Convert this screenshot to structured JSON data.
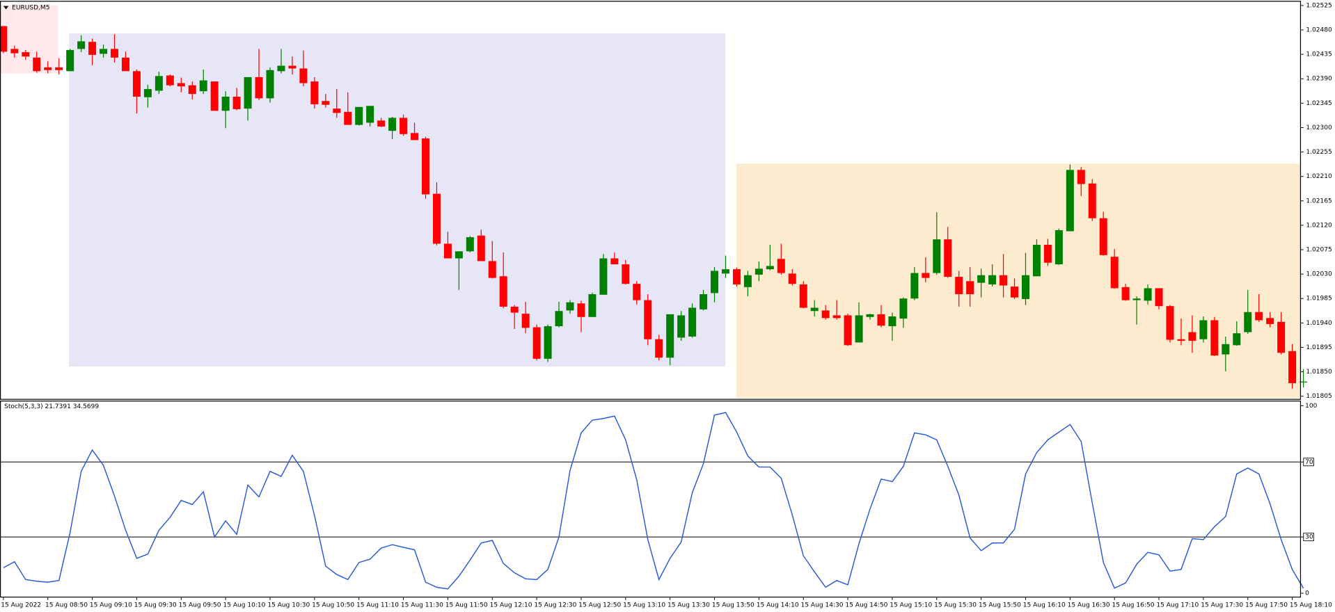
{
  "chart_data": [
    {
      "type": "candlestick",
      "title": "EURUSD,M5",
      "categories": [
        "15 Aug 2022",
        null,
        null,
        null,
        "15 Aug 08:50",
        null,
        null,
        null,
        "15 Aug 09:10",
        null,
        null,
        null,
        "15 Aug 09:30",
        null,
        null,
        null,
        "15 Aug 09:50",
        null,
        null,
        null,
        "15 Aug 10:10",
        null,
        null,
        null,
        "15 Aug 10:30",
        null,
        null,
        null,
        "15 Aug 10:50",
        null,
        null,
        null,
        "15 Aug 11:10",
        null,
        null,
        null,
        "15 Aug 11:30",
        null,
        null,
        null,
        "15 Aug 11:50",
        null,
        null,
        null,
        "15 Aug 12:10",
        null,
        null,
        null,
        "15 Aug 12:30",
        null,
        null,
        null,
        "15 Aug 12:50",
        null,
        null,
        null,
        "15 Aug 13:10",
        null,
        null,
        null,
        "15 Aug 13:30",
        null,
        null,
        null,
        "15 Aug 13:50",
        null,
        null,
        null,
        "15 Aug 14:10",
        null,
        null,
        null,
        "15 Aug 14:30",
        null,
        null,
        null,
        "15 Aug 14:50",
        null,
        null,
        null,
        "15 Aug 15:10",
        null,
        null,
        null,
        "15 Aug 15:30",
        null,
        null,
        null,
        "15 Aug 15:50",
        null,
        null,
        null,
        "15 Aug 16:10",
        null,
        null,
        null,
        "15 Aug 16:30",
        null,
        null,
        null,
        "15 Aug 16:50",
        null,
        null,
        null,
        "15 Aug 17:10",
        null,
        null,
        null,
        "15 Aug 17:30",
        null,
        null,
        null,
        "15 Aug 17:50",
        null,
        null,
        null,
        "15 Aug 18:10",
        null
      ],
      "open": [
        1.02487,
        1.02445,
        1.02439,
        1.02429,
        1.02411,
        1.02411,
        1.02404,
        1.02445,
        1.02458,
        1.02436,
        1.02445,
        1.02429,
        1.02404,
        1.02356,
        1.02368,
        1.02396,
        1.02382,
        1.02378,
        1.02367,
        1.02385,
        1.02331,
        1.02357,
        1.02335,
        1.02393,
        1.02354,
        1.02404,
        1.02414,
        1.02409,
        1.02385,
        1.02349,
        1.02335,
        1.02329,
        1.02305,
        1.02309,
        1.02313,
        1.02294,
        1.02318,
        1.0229,
        1.0228,
        1.02178,
        1.02086,
        1.02059,
        1.02072,
        1.02101,
        1.02054,
        1.02026,
        1.0197,
        1.01957,
        1.01932,
        1.01874,
        1.01934,
        1.01963,
        1.01976,
        1.01951,
        1.01992,
        1.02059,
        1.02048,
        1.02012,
        1.01982,
        1.0191,
        1.01876,
        1.01913,
        1.01915,
        1.01965,
        1.01995,
        1.02031,
        1.02039,
        1.02006,
        1.02029,
        1.02039,
        1.02058,
        1.02031,
        1.02011,
        1.01962,
        1.01963,
        1.01954,
        1.01954,
        1.01904,
        1.01951,
        1.01956,
        1.01934,
        1.01948,
        1.01985,
        1.02032,
        1.02032,
        1.02094,
        1.02025,
        1.02017,
        1.02014,
        1.02011,
        1.02028,
        1.02007,
        1.01984,
        1.02026,
        1.02084,
        1.02048,
        1.02109,
        1.02222,
        1.02197,
        1.02133,
        1.02062,
        1.02006,
        1.01982,
        1.01981,
        1.02004,
        1.01971,
        1.0191,
        1.01923,
        1.0191,
        1.01945,
        1.01882,
        1.01899,
        1.01923,
        1.0196,
        1.01949,
        1.01942,
        1.01888,
        1.01832
      ],
      "high": [
        1.02487,
        1.02451,
        1.02443,
        1.0244,
        1.02422,
        1.02428,
        1.02445,
        1.0247,
        1.02464,
        1.02453,
        1.02472,
        1.0244,
        1.02407,
        1.02379,
        1.02403,
        1.02398,
        1.02392,
        1.02385,
        1.02407,
        1.02385,
        1.02367,
        1.02373,
        1.02393,
        1.02445,
        1.02411,
        1.02445,
        1.02431,
        1.02442,
        1.02393,
        1.02362,
        1.02371,
        1.02365,
        1.02338,
        1.0234,
        1.02318,
        1.0232,
        1.02324,
        1.02309,
        1.02283,
        1.02199,
        1.02108,
        1.02072,
        1.021,
        1.02112,
        1.02091,
        1.0207,
        1.01973,
        1.01979,
        1.01937,
        1.01937,
        1.01979,
        1.01982,
        1.01981,
        1.01996,
        1.02067,
        1.0207,
        1.02056,
        1.02017,
        1.01993,
        1.01918,
        1.01956,
        1.01962,
        1.01976,
        1.02001,
        1.02043,
        1.02064,
        1.02042,
        1.02036,
        1.02053,
        1.02084,
        1.02086,
        1.02039,
        1.02017,
        1.01982,
        1.01973,
        1.01982,
        1.01957,
        1.01978,
        1.01957,
        1.01973,
        1.01959,
        1.01987,
        1.02043,
        1.02061,
        1.02144,
        1.02117,
        1.02036,
        1.02043,
        1.0204,
        1.02048,
        1.02067,
        1.02022,
        1.02069,
        1.02094,
        1.02095,
        1.02114,
        1.02232,
        1.02227,
        1.02205,
        1.02145,
        1.02076,
        1.02012,
        1.01989,
        1.02011,
        1.02004,
        1.01973,
        1.01948,
        1.01954,
        1.01952,
        1.01951,
        1.01915,
        1.01943,
        1.02001,
        1.01993,
        1.0196,
        1.0196,
        1.01901,
        1.01855
      ],
      "low": [
        1.02437,
        1.02429,
        1.02425,
        1.02401,
        1.024,
        1.02398,
        1.02404,
        1.02439,
        1.02415,
        1.02429,
        1.0242,
        1.02404,
        1.02326,
        1.02337,
        1.02362,
        1.02376,
        1.02365,
        1.02352,
        1.02362,
        1.02331,
        1.02299,
        1.02332,
        1.02313,
        1.02351,
        1.02346,
        1.024,
        1.02398,
        1.02376,
        1.02335,
        1.02337,
        1.02318,
        1.02305,
        1.02304,
        1.02302,
        1.02301,
        1.02279,
        1.02285,
        1.02277,
        1.02169,
        1.02083,
        1.02059,
        1.02001,
        1.0207,
        1.02054,
        1.02022,
        1.01967,
        1.01929,
        1.01921,
        1.01871,
        1.01868,
        1.01932,
        1.01957,
        1.01923,
        1.01951,
        1.01992,
        1.02048,
        1.02011,
        1.01974,
        1.01899,
        1.01871,
        1.01862,
        1.01907,
        1.01913,
        1.01963,
        1.01978,
        1.02023,
        1.02007,
        1.01989,
        1.02017,
        1.02037,
        1.02029,
        1.02009,
        1.01967,
        1.01952,
        1.01946,
        1.01946,
        1.01898,
        1.01904,
        1.01946,
        1.01932,
        1.01907,
        1.01931,
        1.01982,
        1.02015,
        1.02029,
        1.02023,
        1.0197,
        1.0197,
        1.01987,
        1.02007,
        1.01987,
        1.01984,
        1.01973,
        1.02026,
        1.02045,
        1.02047,
        1.02109,
        1.02174,
        1.02128,
        1.02064,
        1.02003,
        1.01981,
        1.01937,
        1.01974,
        1.01965,
        1.01904,
        1.01899,
        1.01885,
        1.01904,
        1.01879,
        1.01851,
        1.01898,
        1.0192,
        1.01942,
        1.01932,
        1.01882,
        1.01819,
        1.01821
      ],
      "close": [
        1.0244,
        1.02437,
        1.02431,
        1.02404,
        1.02406,
        1.02406,
        1.02443,
        1.02459,
        1.02434,
        1.02445,
        1.02429,
        1.02404,
        1.02357,
        1.02371,
        1.02395,
        1.02378,
        1.02376,
        1.02362,
        1.02387,
        1.02331,
        1.02357,
        1.02334,
        1.02393,
        1.02354,
        1.02406,
        1.02414,
        1.02409,
        1.02382,
        1.02343,
        1.02342,
        1.02327,
        1.02305,
        1.02338,
        1.0234,
        1.02302,
        1.02318,
        1.02288,
        1.02277,
        1.02177,
        1.02086,
        1.02059,
        1.02072,
        1.02098,
        1.02054,
        1.02023,
        1.0197,
        1.01959,
        1.01931,
        1.01874,
        1.01934,
        1.01962,
        1.01978,
        1.01951,
        1.01993,
        1.02059,
        1.02048,
        1.02012,
        1.01982,
        1.0191,
        1.01876,
        1.01956,
        1.01954,
        1.01968,
        1.01993,
        1.02036,
        1.02039,
        1.02011,
        1.02028,
        1.0204,
        1.02045,
        1.02032,
        1.02012,
        1.01968,
        1.01968,
        1.01949,
        1.01949,
        1.01899,
        1.01954,
        1.01956,
        1.01935,
        1.01952,
        1.01985,
        1.02032,
        1.02023,
        1.02094,
        1.02025,
        1.01993,
        1.01993,
        1.02028,
        1.02028,
        1.02009,
        1.01987,
        1.02028,
        1.02084,
        1.02051,
        1.02111,
        1.02222,
        1.02196,
        1.02133,
        1.02065,
        1.02004,
        1.01982,
        1.01985,
        1.02004,
        1.01971,
        1.01909,
        1.01907,
        1.01907,
        1.01945,
        1.0188,
        1.01901,
        1.01921,
        1.0196,
        1.01945,
        1.01938,
        1.01885,
        1.01829,
        1.01832
      ],
      "up_color": "#008000",
      "down_color": "#ff0000",
      "ylim": [
        1.018,
        1.02532
      ],
      "yticks": [
        1.01805,
        {
          "value": 1.0185,
          "label": "1.01850"
        },
        1.01895,
        {
          "value": 1.0194,
          "label": "1.01940"
        },
        1.01985,
        {
          "value": 1.0203,
          "label": "1.02030"
        },
        1.02075,
        {
          "value": 1.0212,
          "label": "1.02120"
        },
        1.02165,
        {
          "value": 1.0221,
          "label": "1.02210"
        },
        1.02255,
        {
          "value": 1.023,
          "label": "1.02300"
        },
        1.02345,
        {
          "value": 1.0239,
          "label": "1.02390"
        },
        1.02435,
        {
          "value": 1.0248,
          "label": "1.02480"
        },
        1.02525
      ]
    },
    {
      "type": "line",
      "title": "Stoch(5,3,3) 21.7391 34.5699",
      "color": "#2a5ad7",
      "values": [
        13.6,
        16.8,
        7.3,
        6.4,
        5.9,
        6.8,
        32.3,
        65,
        76.4,
        68.2,
        51.8,
        33.6,
        18.6,
        20.9,
        33.6,
        40.5,
        49.5,
        47.3,
        54.1,
        30,
        38.6,
        31.4,
        57.7,
        51.4,
        65,
        62.3,
        73.6,
        65,
        41.4,
        14.5,
        10,
        7.3,
        16.4,
        18.2,
        24.1,
        25.9,
        24.5,
        23.2,
        5.9,
        3.2,
        2.3,
        9.1,
        17.7,
        26.8,
        28.2,
        15.9,
        10.9,
        7.7,
        7.3,
        12.7,
        30,
        65.5,
        85.5,
        92.3,
        93.2,
        94.5,
        81.8,
        60.5,
        28.6,
        7.3,
        18.6,
        27.3,
        53.6,
        69.1,
        95,
        96.4,
        85.9,
        73.2,
        67.3,
        67.3,
        61.4,
        41.8,
        20,
        11.4,
        3.2,
        6.8,
        4.5,
        26.4,
        45,
        60.9,
        59.5,
        67.7,
        85.5,
        84.5,
        81.8,
        67.7,
        52.3,
        29.5,
        22.7,
        26.8,
        26.8,
        34.1,
        63.6,
        75,
        81.8,
        85.9,
        90,
        80.9,
        48.2,
        16.4,
        2.7,
        5.5,
        15.5,
        21.8,
        20.5,
        11.8,
        12.7,
        29.1,
        28.6,
        35.5,
        40.9,
        63.6,
        66.8,
        63.6,
        47.7,
        28.6,
        12.7,
        2.7
      ],
      "ylim": [
        0,
        100
      ],
      "yticks": [
        0,
        30,
        70,
        100
      ],
      "levels": [
        30,
        70
      ]
    }
  ]
}
